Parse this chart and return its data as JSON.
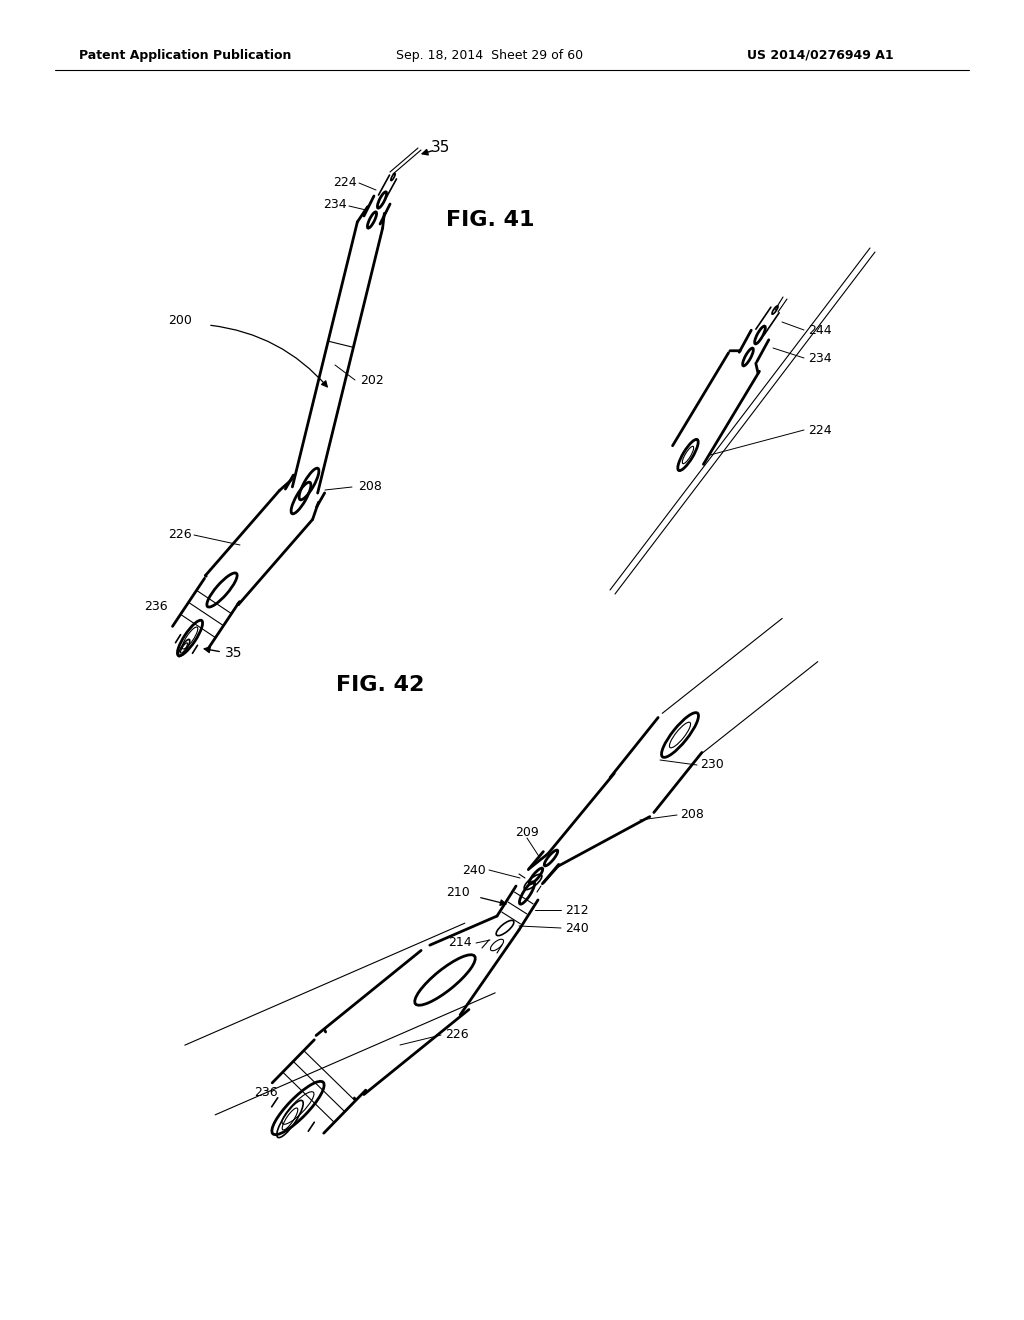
{
  "bg_color": "#ffffff",
  "line_color": "#000000",
  "header_left": "Patent Application Publication",
  "header_mid": "Sep. 18, 2014  Sheet 29 of 60",
  "header_right": "US 2014/0276949 A1",
  "fig41_label": "FIG. 41",
  "fig42_label": "FIG. 42",
  "lw": 1.4,
  "lw_thin": 0.8,
  "lw_thick": 2.0,
  "lw_med": 1.2
}
